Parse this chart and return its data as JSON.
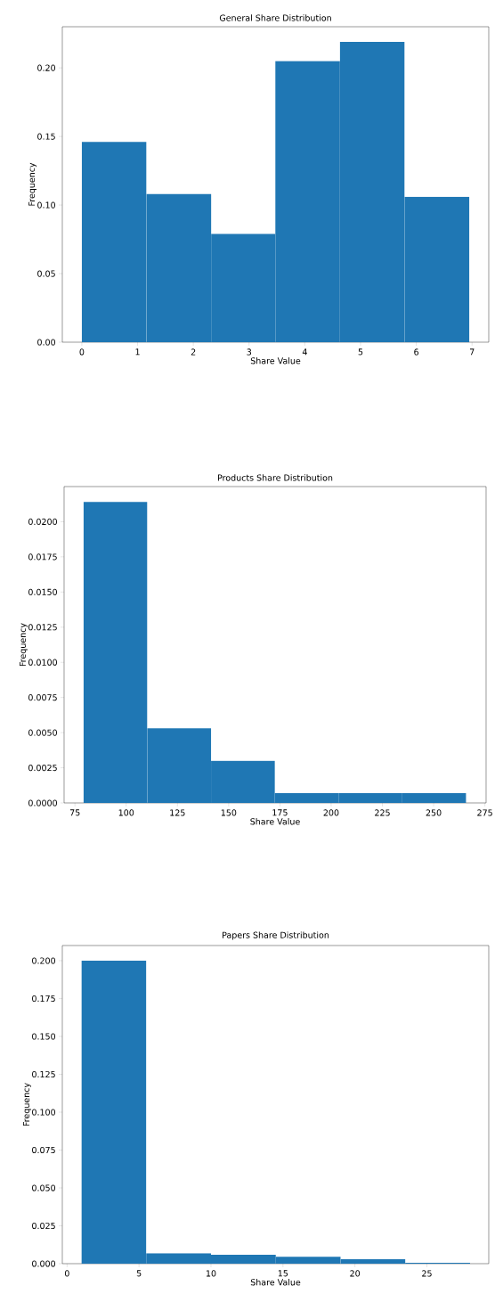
{
  "chart_data": [
    {
      "type": "histogram",
      "title": "General Share Distribution",
      "xlabel": "Share Value",
      "ylabel": "Frequency",
      "color": "#1f77b4",
      "bins": [
        0,
        1.16,
        2.32,
        3.47,
        4.63,
        5.79,
        6.95
      ],
      "values": [
        0.146,
        0.108,
        0.079,
        0.205,
        0.219,
        0.106
      ],
      "xlim": [
        -0.35,
        7.3
      ],
      "ylim": [
        0,
        0.23
      ],
      "xticks": [
        0,
        1,
        2,
        3,
        4,
        5,
        6,
        7
      ],
      "yticks": [
        {
          "value": 0,
          "label": "0.00"
        },
        {
          "value": 0.05,
          "label": "0.05"
        },
        {
          "value": 0.1,
          "label": "0.10"
        },
        {
          "value": 0.15,
          "label": "0.15"
        },
        {
          "value": 0.2,
          "label": "0.20"
        }
      ]
    },
    {
      "type": "histogram",
      "title": "Products Share Distribution",
      "xlabel": "Share Value",
      "ylabel": "Frequency",
      "color": "#1f77b4",
      "bins": [
        79.2,
        110.3,
        141.4,
        172.5,
        203.6,
        234.7,
        265.8
      ],
      "values": [
        0.0214,
        0.0053,
        0.003,
        0.0007,
        0.0007,
        0.0007
      ],
      "xlim": [
        69.7,
        275.6
      ],
      "ylim": [
        0,
        0.0225
      ],
      "xticks": [
        75,
        100,
        125,
        150,
        175,
        200,
        225,
        250,
        275
      ],
      "yticks": [
        {
          "value": 0,
          "label": "0.0000"
        },
        {
          "value": 0.0025,
          "label": "0.0025"
        },
        {
          "value": 0.005,
          "label": "0.0050"
        },
        {
          "value": 0.0075,
          "label": "0.0075"
        },
        {
          "value": 0.01,
          "label": "0.0100"
        },
        {
          "value": 0.0125,
          "label": "0.0125"
        },
        {
          "value": 0.015,
          "label": "0.0150"
        },
        {
          "value": 0.0175,
          "label": "0.0175"
        },
        {
          "value": 0.02,
          "label": "0.0200"
        }
      ]
    },
    {
      "type": "histogram",
      "title": "Papers Share Distribution",
      "xlabel": "Share Value",
      "ylabel": "Frequency",
      "color": "#1f77b4",
      "bins": [
        1,
        5.5,
        10,
        14.5,
        19,
        23.5,
        28
      ],
      "values": [
        0.2,
        0.0069,
        0.0059,
        0.0046,
        0.0029,
        0.0006
      ],
      "xlim": [
        -0.33,
        29.3
      ],
      "ylim": [
        0,
        0.21
      ],
      "xticks": [
        0,
        5,
        10,
        15,
        20,
        25
      ],
      "yticks": [
        {
          "value": 0,
          "label": "0.000"
        },
        {
          "value": 0.025,
          "label": "0.025"
        },
        {
          "value": 0.05,
          "label": "0.050"
        },
        {
          "value": 0.075,
          "label": "0.075"
        },
        {
          "value": 0.1,
          "label": "0.100"
        },
        {
          "value": 0.125,
          "label": "0.125"
        },
        {
          "value": 0.15,
          "label": "0.150"
        },
        {
          "value": 0.175,
          "label": "0.175"
        },
        {
          "value": 0.2,
          "label": "0.200"
        }
      ]
    }
  ]
}
